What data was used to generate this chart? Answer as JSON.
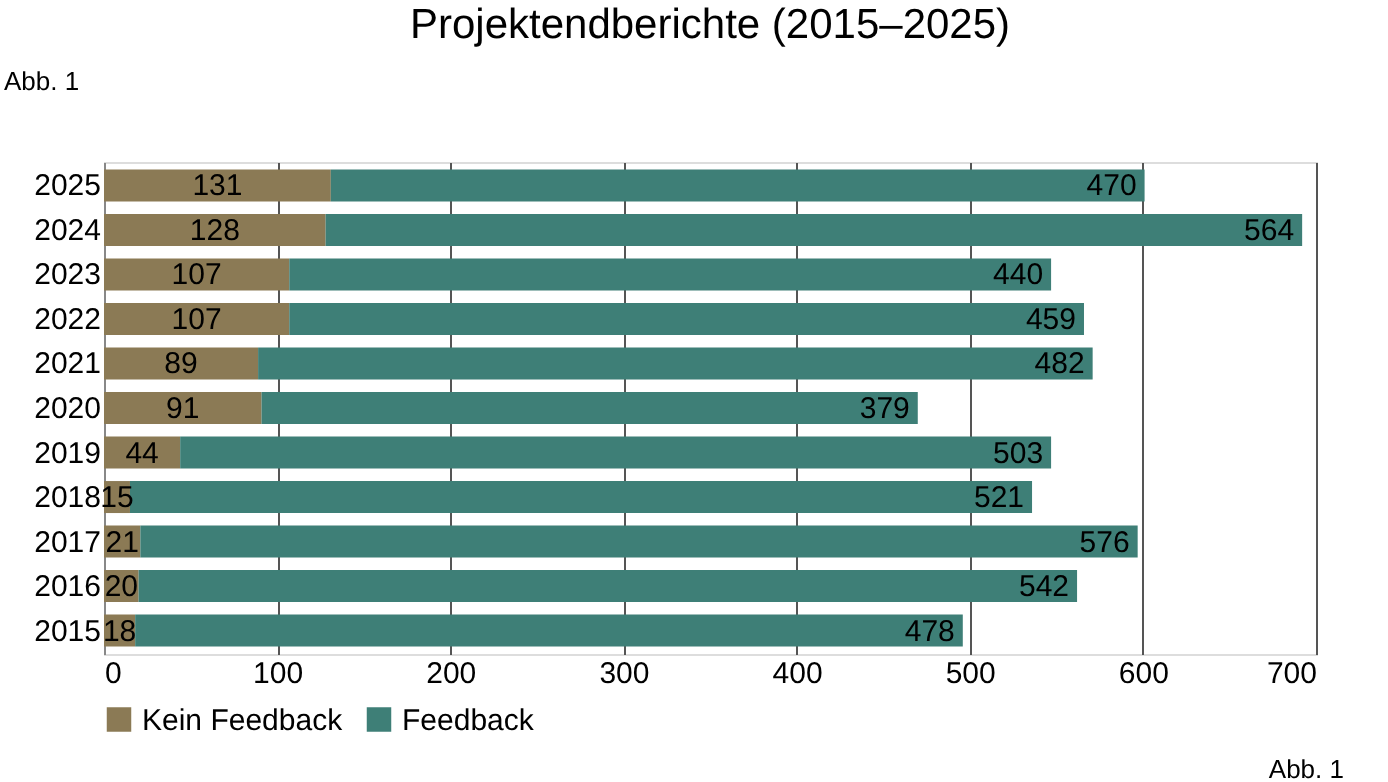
{
  "chart_data": {
    "type": "bar",
    "orientation": "horizontal",
    "stacked": true,
    "title": "Projektendberichte (2015–2025)",
    "categories": [
      "2025",
      "2024",
      "2023",
      "2022",
      "2021",
      "2020",
      "2019",
      "2018",
      "2017",
      "2016",
      "2015"
    ],
    "series": [
      {
        "name": "Kein Feedback",
        "color": "#8b7a55",
        "values": [
          131,
          128,
          107,
          107,
          89,
          91,
          44,
          15,
          21,
          20,
          18
        ]
      },
      {
        "name": "Feedback",
        "color": "#3e7f77",
        "values": [
          470,
          564,
          440,
          459,
          482,
          379,
          503,
          521,
          576,
          542,
          478
        ]
      }
    ],
    "xlim": [
      0,
      700
    ],
    "xticks": [
      0,
      100,
      200,
      300,
      400,
      500,
      600,
      700
    ],
    "grid": "x",
    "legend": "bottom",
    "data_labels": true,
    "annotations": [
      "Abb. 1",
      "Abb. 1"
    ]
  }
}
